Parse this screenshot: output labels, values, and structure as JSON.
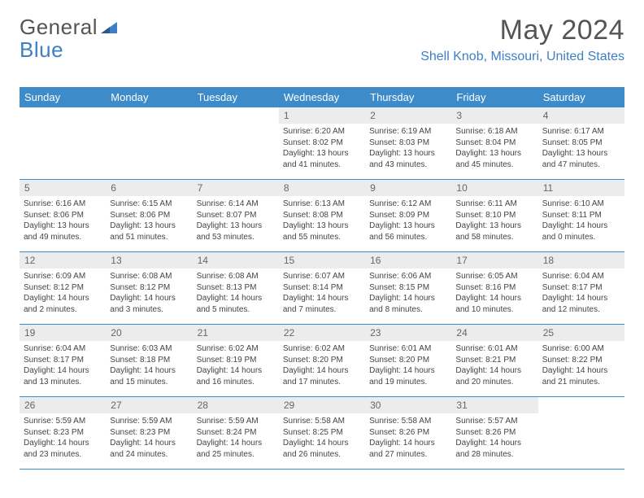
{
  "logo": {
    "text_gray": "General",
    "text_blue": "Blue"
  },
  "title": "May 2024",
  "location": "Shell Knob, Missouri, United States",
  "colors": {
    "header_bg": "#3d8bc9",
    "header_text": "#ffffff",
    "accent": "#3d7fc4",
    "day_num_bg": "#ececec",
    "body_text": "#444444",
    "title_text": "#555555"
  },
  "day_names": [
    "Sunday",
    "Monday",
    "Tuesday",
    "Wednesday",
    "Thursday",
    "Friday",
    "Saturday"
  ],
  "weeks": [
    [
      {
        "n": "",
        "sr": "",
        "ss": "",
        "dl": ""
      },
      {
        "n": "",
        "sr": "",
        "ss": "",
        "dl": ""
      },
      {
        "n": "",
        "sr": "",
        "ss": "",
        "dl": ""
      },
      {
        "n": "1",
        "sr": "Sunrise: 6:20 AM",
        "ss": "Sunset: 8:02 PM",
        "dl": "Daylight: 13 hours and 41 minutes."
      },
      {
        "n": "2",
        "sr": "Sunrise: 6:19 AM",
        "ss": "Sunset: 8:03 PM",
        "dl": "Daylight: 13 hours and 43 minutes."
      },
      {
        "n": "3",
        "sr": "Sunrise: 6:18 AM",
        "ss": "Sunset: 8:04 PM",
        "dl": "Daylight: 13 hours and 45 minutes."
      },
      {
        "n": "4",
        "sr": "Sunrise: 6:17 AM",
        "ss": "Sunset: 8:05 PM",
        "dl": "Daylight: 13 hours and 47 minutes."
      }
    ],
    [
      {
        "n": "5",
        "sr": "Sunrise: 6:16 AM",
        "ss": "Sunset: 8:06 PM",
        "dl": "Daylight: 13 hours and 49 minutes."
      },
      {
        "n": "6",
        "sr": "Sunrise: 6:15 AM",
        "ss": "Sunset: 8:06 PM",
        "dl": "Daylight: 13 hours and 51 minutes."
      },
      {
        "n": "7",
        "sr": "Sunrise: 6:14 AM",
        "ss": "Sunset: 8:07 PM",
        "dl": "Daylight: 13 hours and 53 minutes."
      },
      {
        "n": "8",
        "sr": "Sunrise: 6:13 AM",
        "ss": "Sunset: 8:08 PM",
        "dl": "Daylight: 13 hours and 55 minutes."
      },
      {
        "n": "9",
        "sr": "Sunrise: 6:12 AM",
        "ss": "Sunset: 8:09 PM",
        "dl": "Daylight: 13 hours and 56 minutes."
      },
      {
        "n": "10",
        "sr": "Sunrise: 6:11 AM",
        "ss": "Sunset: 8:10 PM",
        "dl": "Daylight: 13 hours and 58 minutes."
      },
      {
        "n": "11",
        "sr": "Sunrise: 6:10 AM",
        "ss": "Sunset: 8:11 PM",
        "dl": "Daylight: 14 hours and 0 minutes."
      }
    ],
    [
      {
        "n": "12",
        "sr": "Sunrise: 6:09 AM",
        "ss": "Sunset: 8:12 PM",
        "dl": "Daylight: 14 hours and 2 minutes."
      },
      {
        "n": "13",
        "sr": "Sunrise: 6:08 AM",
        "ss": "Sunset: 8:12 PM",
        "dl": "Daylight: 14 hours and 3 minutes."
      },
      {
        "n": "14",
        "sr": "Sunrise: 6:08 AM",
        "ss": "Sunset: 8:13 PM",
        "dl": "Daylight: 14 hours and 5 minutes."
      },
      {
        "n": "15",
        "sr": "Sunrise: 6:07 AM",
        "ss": "Sunset: 8:14 PM",
        "dl": "Daylight: 14 hours and 7 minutes."
      },
      {
        "n": "16",
        "sr": "Sunrise: 6:06 AM",
        "ss": "Sunset: 8:15 PM",
        "dl": "Daylight: 14 hours and 8 minutes."
      },
      {
        "n": "17",
        "sr": "Sunrise: 6:05 AM",
        "ss": "Sunset: 8:16 PM",
        "dl": "Daylight: 14 hours and 10 minutes."
      },
      {
        "n": "18",
        "sr": "Sunrise: 6:04 AM",
        "ss": "Sunset: 8:17 PM",
        "dl": "Daylight: 14 hours and 12 minutes."
      }
    ],
    [
      {
        "n": "19",
        "sr": "Sunrise: 6:04 AM",
        "ss": "Sunset: 8:17 PM",
        "dl": "Daylight: 14 hours and 13 minutes."
      },
      {
        "n": "20",
        "sr": "Sunrise: 6:03 AM",
        "ss": "Sunset: 8:18 PM",
        "dl": "Daylight: 14 hours and 15 minutes."
      },
      {
        "n": "21",
        "sr": "Sunrise: 6:02 AM",
        "ss": "Sunset: 8:19 PM",
        "dl": "Daylight: 14 hours and 16 minutes."
      },
      {
        "n": "22",
        "sr": "Sunrise: 6:02 AM",
        "ss": "Sunset: 8:20 PM",
        "dl": "Daylight: 14 hours and 17 minutes."
      },
      {
        "n": "23",
        "sr": "Sunrise: 6:01 AM",
        "ss": "Sunset: 8:20 PM",
        "dl": "Daylight: 14 hours and 19 minutes."
      },
      {
        "n": "24",
        "sr": "Sunrise: 6:01 AM",
        "ss": "Sunset: 8:21 PM",
        "dl": "Daylight: 14 hours and 20 minutes."
      },
      {
        "n": "25",
        "sr": "Sunrise: 6:00 AM",
        "ss": "Sunset: 8:22 PM",
        "dl": "Daylight: 14 hours and 21 minutes."
      }
    ],
    [
      {
        "n": "26",
        "sr": "Sunrise: 5:59 AM",
        "ss": "Sunset: 8:23 PM",
        "dl": "Daylight: 14 hours and 23 minutes."
      },
      {
        "n": "27",
        "sr": "Sunrise: 5:59 AM",
        "ss": "Sunset: 8:23 PM",
        "dl": "Daylight: 14 hours and 24 minutes."
      },
      {
        "n": "28",
        "sr": "Sunrise: 5:59 AM",
        "ss": "Sunset: 8:24 PM",
        "dl": "Daylight: 14 hours and 25 minutes."
      },
      {
        "n": "29",
        "sr": "Sunrise: 5:58 AM",
        "ss": "Sunset: 8:25 PM",
        "dl": "Daylight: 14 hours and 26 minutes."
      },
      {
        "n": "30",
        "sr": "Sunrise: 5:58 AM",
        "ss": "Sunset: 8:26 PM",
        "dl": "Daylight: 14 hours and 27 minutes."
      },
      {
        "n": "31",
        "sr": "Sunrise: 5:57 AM",
        "ss": "Sunset: 8:26 PM",
        "dl": "Daylight: 14 hours and 28 minutes."
      },
      {
        "n": "",
        "sr": "",
        "ss": "",
        "dl": ""
      }
    ]
  ]
}
